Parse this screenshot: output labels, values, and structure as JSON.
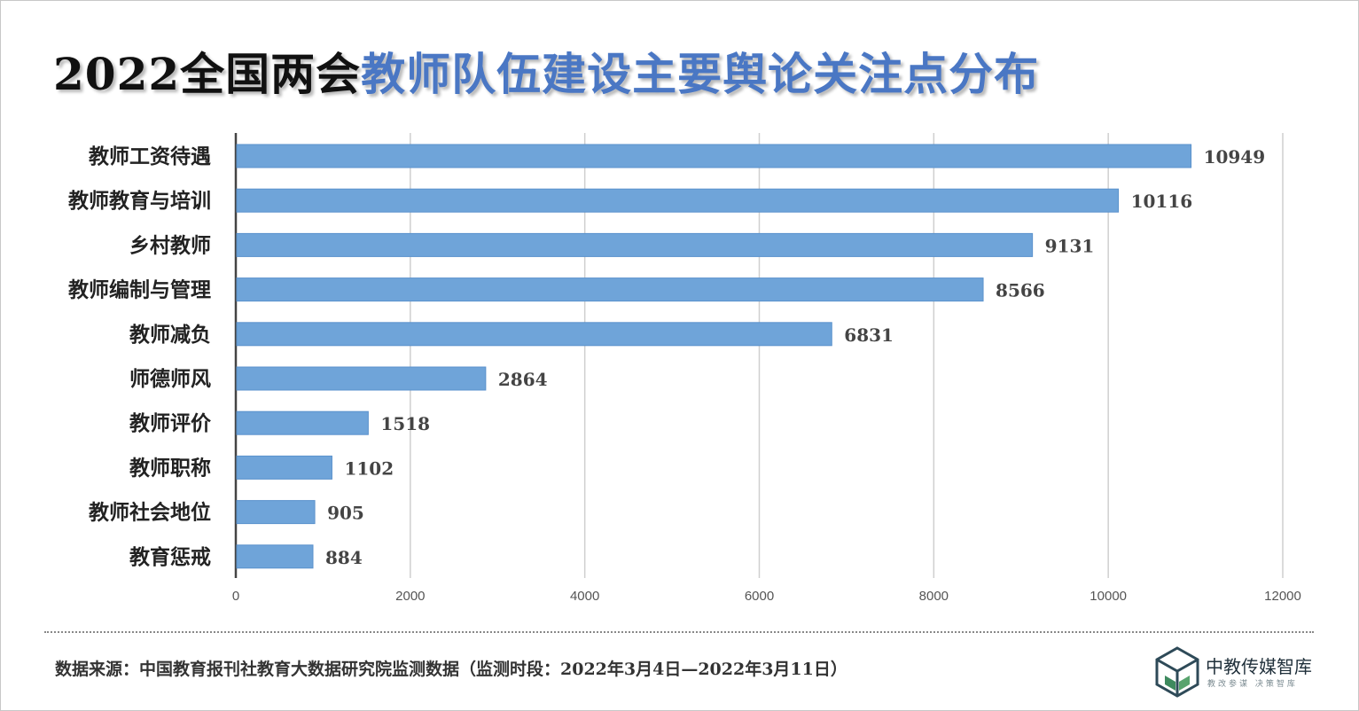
{
  "title": {
    "part1": "2022全国两会",
    "part2": "教师队伍建设主要舆论关注点分布"
  },
  "chart_data": {
    "type": "bar",
    "orientation": "horizontal",
    "categories": [
      "教师工资待遇",
      "教师教育与培训",
      "乡村教师",
      "教师编制与管理",
      "教师减负",
      "师德师风",
      "教师评价",
      "教师职称",
      "教师社会地位",
      "教育惩戒"
    ],
    "values": [
      10949,
      10116,
      9131,
      8566,
      6831,
      2864,
      1518,
      1102,
      905,
      884
    ],
    "xlim": [
      0,
      12000
    ],
    "xticks": [
      0,
      2000,
      4000,
      6000,
      8000,
      10000,
      12000
    ],
    "grid": true,
    "legend": "none",
    "bar_color": "#6fa4d9"
  },
  "source": "数据来源：中国教育报刊社教育大数据研究院监测数据（监测时段：2022年3月4日—2022年3月11日）",
  "logo": {
    "name": "中教传媒智库",
    "slogan": "教改参谋 决策智库",
    "icon": "cube-logo-icon",
    "accent": "#3e8a5e"
  }
}
